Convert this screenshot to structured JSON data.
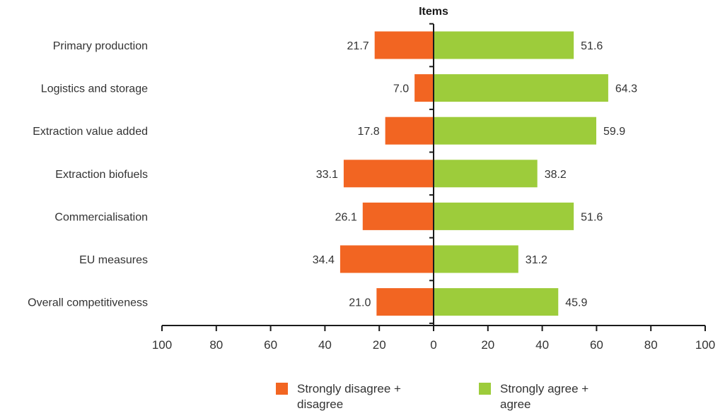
{
  "chart_data": {
    "type": "bar",
    "orientation": "horizontal-diverging",
    "title": "Items",
    "categories": [
      "Primary production",
      "Logistics and storage",
      "Extraction value added",
      "Extraction biofuels",
      "Commercialisation",
      "EU measures",
      "Overall competitiveness"
    ],
    "series": [
      {
        "name": "Strongly disagree + disagree",
        "color": "#f26522",
        "values": [
          21.7,
          7.0,
          17.8,
          33.1,
          26.1,
          34.4,
          21.0
        ],
        "value_labels": [
          "21.7",
          "7.0",
          "17.8",
          "33.1",
          "26.1",
          "34.4",
          "21.0"
        ]
      },
      {
        "name": "Strongly agree + agree",
        "color": "#9dcc3b",
        "values": [
          51.6,
          64.3,
          59.9,
          38.2,
          51.6,
          31.2,
          45.9
        ],
        "value_labels": [
          "51.6",
          "64.3",
          "59.9",
          "38.2",
          "51.6",
          "31.2",
          "45.9"
        ]
      }
    ],
    "xlim": [
      -100,
      100
    ],
    "xticks": [
      -100,
      -80,
      -60,
      -40,
      -20,
      0,
      20,
      40,
      60,
      80,
      100
    ],
    "xtick_labels": [
      "100",
      "80",
      "60",
      "40",
      "20",
      "0",
      "20",
      "40",
      "60",
      "80",
      "100"
    ],
    "grid": false,
    "legend_position": "bottom"
  },
  "legend": {
    "items": [
      {
        "label_line1": "Strongly disagree +",
        "label_line2": "disagree",
        "color": "#f26522"
      },
      {
        "label_line1": "Strongly agree +",
        "label_line2": "agree",
        "color": "#9dcc3b"
      }
    ]
  }
}
